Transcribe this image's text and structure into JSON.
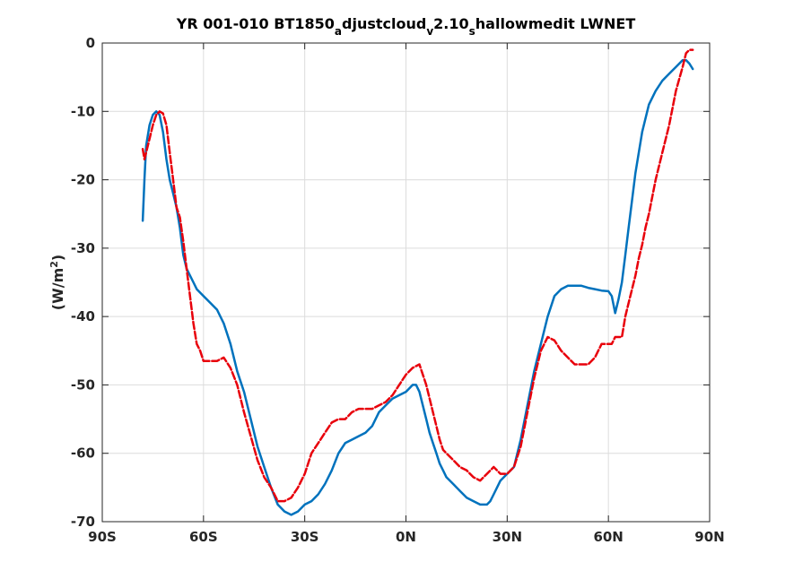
{
  "chart_data": {
    "type": "line",
    "title": "YR 001-010 BT1850_adjustcloud_v2.10_shallowmedit LWNET",
    "title_parts": [
      {
        "text": "YR 001-010 BT1850",
        "sub": false
      },
      {
        "text": "a",
        "sub": true
      },
      {
        "text": "djustcloud",
        "sub": false
      },
      {
        "text": "v",
        "sub": true
      },
      {
        "text": "2.10",
        "sub": false
      },
      {
        "text": "s",
        "sub": true
      },
      {
        "text": "hallowmedit LWNET",
        "sub": false
      }
    ],
    "xlabel": "",
    "ylabel": "(W/m",
    "ylabel_sup": "2",
    "ylabel_close": ")",
    "xlim": [
      -90,
      90
    ],
    "ylim": [
      -70,
      0
    ],
    "xticks": [
      -90,
      -60,
      -30,
      0,
      30,
      60,
      90
    ],
    "xtick_labels": [
      "90S",
      "60S",
      "30S",
      "0N",
      "30N",
      "60N",
      "90N"
    ],
    "yticks": [
      0,
      -10,
      -20,
      -30,
      -40,
      -50,
      -60,
      -70
    ],
    "ytick_labels": [
      "0",
      "-10",
      "-20",
      "-30",
      "-40",
      "-50",
      "-60",
      "-70"
    ],
    "grid": true,
    "series": [
      {
        "color": "#0072BD",
        "style": "solid",
        "x": [
          -78,
          -77.5,
          -77,
          -76,
          -75,
          -74,
          -73,
          -72,
          -71,
          -70,
          -69,
          -68,
          -67,
          -66,
          -65,
          -64,
          -63,
          -62,
          -60,
          -58,
          -56,
          -54,
          -52,
          -50,
          -48,
          -46,
          -44,
          -42,
          -40,
          -38,
          -36,
          -34,
          -32,
          -30,
          -28,
          -26,
          -24,
          -22,
          -20,
          -18,
          -16,
          -14,
          -12,
          -10,
          -8,
          -6,
          -4,
          -2,
          0,
          1,
          2,
          3,
          4,
          5,
          6,
          7,
          8,
          9,
          10,
          11,
          12,
          14,
          16,
          18,
          20,
          22,
          24,
          25,
          26,
          27,
          28,
          30,
          32,
          34,
          36,
          38,
          40,
          42,
          44,
          46,
          48,
          50,
          52,
          54,
          56,
          58,
          60,
          61,
          62,
          63,
          64,
          65,
          66,
          67,
          68,
          70,
          72,
          74,
          76,
          78,
          80,
          82,
          83,
          84,
          85
        ],
        "y": [
          -26,
          -20,
          -15,
          -12,
          -10.5,
          -10,
          -10.5,
          -13,
          -17,
          -20,
          -22,
          -24,
          -27,
          -31,
          -33,
          -34,
          -35,
          -36,
          -37,
          -38,
          -39,
          -41,
          -44,
          -48,
          -51,
          -55,
          -59,
          -62,
          -65,
          -67.5,
          -68.5,
          -69,
          -68.5,
          -67.5,
          -67,
          -66,
          -64.5,
          -62.5,
          -60,
          -58.5,
          -58,
          -57.5,
          -57,
          -56,
          -54,
          -53,
          -52,
          -51.5,
          -51,
          -50.5,
          -50,
          -50,
          -51,
          -53,
          -55,
          -57,
          -58.5,
          -60,
          -61.5,
          -62.5,
          -63.5,
          -64.5,
          -65.5,
          -66.5,
          -67,
          -67.5,
          -67.5,
          -67,
          -66,
          -65,
          -64,
          -63,
          -62,
          -58,
          -53,
          -48,
          -44,
          -40,
          -37,
          -36,
          -35.5,
          -35.5,
          -35.5,
          -35.8,
          -36,
          -36.2,
          -36.3,
          -37,
          -39.5,
          -37.5,
          -35,
          -31,
          -27,
          -23,
          -19,
          -13,
          -9,
          -7,
          -5.5,
          -4.5,
          -3.5,
          -2.5,
          -2.5,
          -3,
          -3.8
        ]
      },
      {
        "color": "#E8000B",
        "style": "dashed",
        "x": [
          -78,
          -77.5,
          -77,
          -76,
          -75,
          -74,
          -73,
          -72,
          -71,
          -70,
          -69,
          -68,
          -67,
          -66,
          -65,
          -64,
          -63,
          -62,
          -61,
          -60,
          -58,
          -56,
          -54,
          -52,
          -50,
          -48,
          -46,
          -44,
          -42,
          -40,
          -38,
          -36,
          -34,
          -32,
          -30,
          -28,
          -26,
          -24,
          -22,
          -20,
          -18,
          -16,
          -14,
          -12,
          -10,
          -8,
          -6,
          -4,
          -2,
          0,
          2,
          4,
          6,
          8,
          9,
          10,
          11,
          12,
          14,
          16,
          18,
          20,
          22,
          24,
          26,
          28,
          30,
          32,
          34,
          36,
          38,
          40,
          42,
          44,
          46,
          48,
          50,
          52,
          54,
          56,
          58,
          60,
          61,
          62,
          63,
          64,
          65,
          66,
          67,
          68,
          69,
          70,
          71,
          72,
          74,
          76,
          78,
          80,
          82,
          83,
          84,
          85
        ],
        "y": [
          -15.5,
          -17,
          -16,
          -14,
          -12,
          -10.5,
          -10,
          -10.3,
          -12,
          -16,
          -20,
          -24,
          -25.5,
          -29,
          -33,
          -37,
          -41,
          -44,
          -45,
          -46.5,
          -46.5,
          -46.5,
          -46,
          -47.5,
          -50,
          -54,
          -57.5,
          -61,
          -63.5,
          -65,
          -67,
          -67,
          -66.5,
          -65,
          -63,
          -60,
          -58.5,
          -57,
          -55.5,
          -55,
          -55,
          -54,
          -53.5,
          -53.5,
          -53.5,
          -53,
          -52.5,
          -51.5,
          -50,
          -48.5,
          -47.5,
          -47,
          -50,
          -54,
          -56,
          -58,
          -59.5,
          -60,
          -61,
          -62,
          -62.5,
          -63.5,
          -64,
          -63,
          -62,
          -63,
          -63,
          -62,
          -59,
          -54,
          -49,
          -45,
          -43,
          -43.5,
          -45,
          -46,
          -47,
          -47,
          -47,
          -46,
          -44,
          -44,
          -44,
          -43,
          -43,
          -43,
          -40,
          -38,
          -36,
          -34,
          -31.5,
          -29.5,
          -27,
          -25,
          -20,
          -16,
          -12,
          -7,
          -3.5,
          -1.5,
          -1,
          -1
        ]
      }
    ]
  }
}
